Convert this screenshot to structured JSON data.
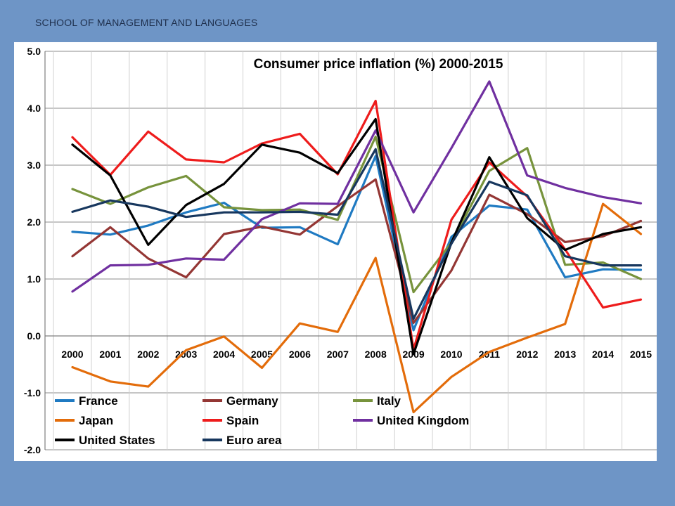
{
  "header": {
    "org_name": "SCHOOL OF MANAGEMENT AND LANGUAGES"
  },
  "chart_data": {
    "type": "line",
    "title": "Consumer price inflation (%) 2000-2015",
    "xlabel": "",
    "ylabel": "",
    "ylim": [
      -2.0,
      5.0
    ],
    "yticks": [
      "5.0",
      "4.0",
      "3.0",
      "2.0",
      "1.0",
      "0.0",
      "-1.0",
      "-2.0"
    ],
    "categories": [
      "2000",
      "2001",
      "2002",
      "2003",
      "2004",
      "2005",
      "2006",
      "2007",
      "2008",
      "2009",
      "2010",
      "2011",
      "2012",
      "2013",
      "2014",
      "2015"
    ],
    "grid": true,
    "legend_placement": "bottom-left",
    "series": [
      {
        "name": "France",
        "color": "#1f7ac2",
        "values": [
          1.83,
          1.78,
          1.94,
          2.17,
          2.34,
          1.9,
          1.91,
          1.61,
          3.16,
          0.1,
          1.74,
          2.29,
          2.22,
          1.03,
          1.17,
          1.16
        ]
      },
      {
        "name": "Germany",
        "color": "#943634",
        "values": [
          1.4,
          1.91,
          1.36,
          1.03,
          1.79,
          1.92,
          1.78,
          2.28,
          2.75,
          0.23,
          1.15,
          2.48,
          2.14,
          1.65,
          1.75,
          2.02
        ]
      },
      {
        "name": "Italy",
        "color": "#77933c",
        "values": [
          2.58,
          2.32,
          2.61,
          2.81,
          2.26,
          2.21,
          2.22,
          2.04,
          3.5,
          0.77,
          1.64,
          2.9,
          3.3,
          1.25,
          1.29,
          1.0
        ]
      },
      {
        "name": "Japan",
        "color": "#e36c0a",
        "values": [
          -0.55,
          -0.8,
          -0.89,
          -0.25,
          -0.01,
          -0.56,
          0.22,
          0.07,
          1.37,
          -1.34,
          -0.72,
          -0.28,
          -0.03,
          0.21,
          2.32,
          1.79
        ]
      },
      {
        "name": "Spain",
        "color": "#ee1c1c",
        "values": [
          3.49,
          2.83,
          3.59,
          3.1,
          3.05,
          3.38,
          3.55,
          2.84,
          4.13,
          -0.24,
          2.04,
          3.05,
          2.45,
          1.52,
          0.5,
          0.64
        ]
      },
      {
        "name": "United Kingdom",
        "color": "#7030a0",
        "values": [
          0.78,
          1.24,
          1.25,
          1.36,
          1.34,
          2.05,
          2.33,
          2.32,
          3.61,
          2.17,
          3.3,
          4.47,
          2.82,
          2.6,
          2.44,
          2.33
        ]
      },
      {
        "name": "United States",
        "color": "#000000",
        "values": [
          3.36,
          2.82,
          1.6,
          2.3,
          2.67,
          3.36,
          3.22,
          2.86,
          3.81,
          -0.32,
          1.64,
          3.14,
          2.07,
          1.51,
          1.79,
          1.91
        ]
      },
      {
        "name": "Euro area",
        "color": "#17375e",
        "values": [
          2.18,
          2.38,
          2.27,
          2.09,
          2.17,
          2.17,
          2.18,
          2.13,
          3.28,
          0.3,
          1.62,
          2.71,
          2.47,
          1.4,
          1.24,
          1.24
        ]
      }
    ]
  }
}
